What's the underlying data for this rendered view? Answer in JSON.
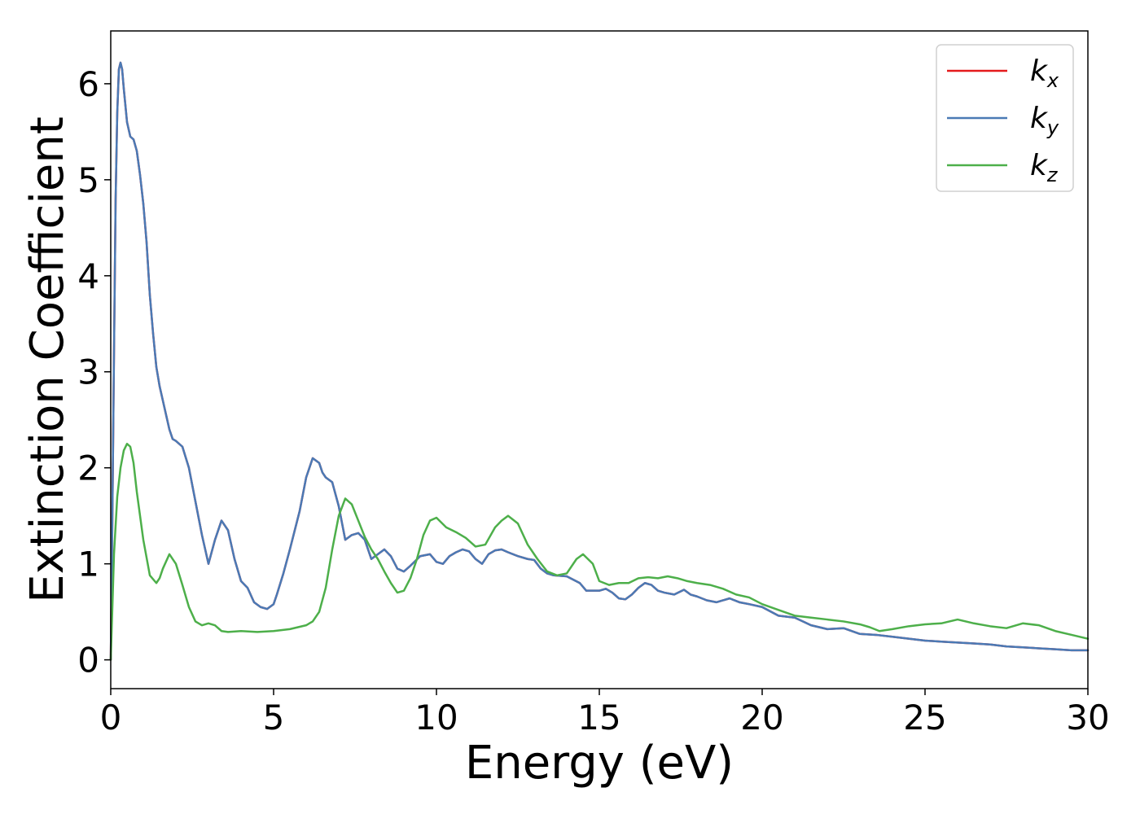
{
  "chart_data": {
    "type": "line",
    "xlabel": "Energy (eV)",
    "ylabel": "Extinction Coefficient",
    "xlim": [
      0,
      30
    ],
    "ylim": [
      -0.3,
      6.55
    ],
    "xticks": [
      "0",
      "5",
      "10",
      "15",
      "20",
      "25",
      "30"
    ],
    "yticks": [
      "0",
      "1",
      "2",
      "3",
      "4",
      "5",
      "6"
    ],
    "xtick_values": [
      0,
      5,
      10,
      15,
      20,
      25,
      30
    ],
    "ytick_values": [
      0,
      1,
      2,
      3,
      4,
      5,
      6
    ],
    "grid": false,
    "legend_position": "top-right",
    "colors": {
      "kx": "#e41a1c",
      "ky": "#4a7ab5",
      "kz": "#4daf4a"
    },
    "series": [
      {
        "name": "k_x",
        "label_main": "k",
        "label_sub": "x",
        "color": "#e41a1c",
        "x": [
          0.0,
          0.05,
          0.1,
          0.15,
          0.2,
          0.25,
          0.3,
          0.35,
          0.4,
          0.5,
          0.6,
          0.7,
          0.8,
          0.9,
          1.0,
          1.1,
          1.2,
          1.3,
          1.4,
          1.5,
          1.6,
          1.7,
          1.8,
          1.9,
          2.0,
          2.2,
          2.4,
          2.6,
          2.8,
          3.0,
          3.2,
          3.4,
          3.6,
          3.8,
          4.0,
          4.2,
          4.4,
          4.6,
          4.8,
          5.0,
          5.1,
          5.3,
          5.5,
          5.8,
          6.0,
          6.2,
          6.4,
          6.5,
          6.6,
          6.8,
          7.0,
          7.2,
          7.4,
          7.6,
          7.8,
          8.0,
          8.2,
          8.4,
          8.6,
          8.8,
          9.0,
          9.2,
          9.5,
          9.8,
          10.0,
          10.2,
          10.4,
          10.6,
          10.8,
          11.0,
          11.2,
          11.4,
          11.6,
          11.8,
          12.0,
          12.2,
          12.5,
          12.8,
          13.0,
          13.2,
          13.4,
          13.6,
          14.0,
          14.4,
          14.6,
          14.8,
          15.0,
          15.2,
          15.4,
          15.6,
          15.8,
          16.0,
          16.2,
          16.4,
          16.6,
          16.8,
          17.0,
          17.3,
          17.6,
          17.8,
          18.0,
          18.3,
          18.6,
          18.8,
          19.0,
          19.3,
          19.6,
          20.0,
          20.5,
          21.0,
          21.5,
          22.0,
          22.5,
          23.0,
          23.5,
          24.0,
          24.5,
          25.0,
          25.5,
          26.0,
          26.5,
          27.0,
          27.5,
          28.0,
          28.5,
          29.0,
          29.5,
          30.0
        ],
        "values": [
          0.0,
          1.5,
          3.2,
          4.8,
          5.7,
          6.15,
          6.22,
          6.15,
          5.95,
          5.6,
          5.45,
          5.42,
          5.3,
          5.05,
          4.75,
          4.35,
          3.8,
          3.4,
          3.05,
          2.85,
          2.7,
          2.55,
          2.4,
          2.3,
          2.28,
          2.22,
          2.0,
          1.65,
          1.3,
          1.0,
          1.25,
          1.45,
          1.35,
          1.05,
          0.82,
          0.75,
          0.6,
          0.55,
          0.53,
          0.58,
          0.68,
          0.9,
          1.15,
          1.55,
          1.9,
          2.1,
          2.05,
          1.95,
          1.9,
          1.85,
          1.6,
          1.25,
          1.3,
          1.32,
          1.25,
          1.05,
          1.1,
          1.15,
          1.08,
          0.95,
          0.92,
          0.98,
          1.08,
          1.1,
          1.02,
          1.0,
          1.08,
          1.12,
          1.15,
          1.13,
          1.05,
          1.0,
          1.1,
          1.14,
          1.15,
          1.12,
          1.08,
          1.05,
          1.04,
          0.95,
          0.9,
          0.88,
          0.87,
          0.8,
          0.72,
          0.72,
          0.72,
          0.74,
          0.7,
          0.64,
          0.63,
          0.68,
          0.75,
          0.8,
          0.78,
          0.72,
          0.7,
          0.68,
          0.73,
          0.68,
          0.66,
          0.62,
          0.6,
          0.62,
          0.64,
          0.6,
          0.58,
          0.55,
          0.46,
          0.44,
          0.36,
          0.32,
          0.33,
          0.27,
          0.26,
          0.24,
          0.22,
          0.2,
          0.19,
          0.18,
          0.17,
          0.16,
          0.14,
          0.13,
          0.12,
          0.11,
          0.1,
          0.1
        ]
      },
      {
        "name": "k_y",
        "label_main": "k",
        "label_sub": "y",
        "color": "#4a7ab5",
        "x": [
          0.0,
          0.05,
          0.1,
          0.15,
          0.2,
          0.25,
          0.3,
          0.35,
          0.4,
          0.5,
          0.6,
          0.7,
          0.8,
          0.9,
          1.0,
          1.1,
          1.2,
          1.3,
          1.4,
          1.5,
          1.6,
          1.7,
          1.8,
          1.9,
          2.0,
          2.2,
          2.4,
          2.6,
          2.8,
          3.0,
          3.2,
          3.4,
          3.6,
          3.8,
          4.0,
          4.2,
          4.4,
          4.6,
          4.8,
          5.0,
          5.1,
          5.3,
          5.5,
          5.8,
          6.0,
          6.2,
          6.4,
          6.5,
          6.6,
          6.8,
          7.0,
          7.2,
          7.4,
          7.6,
          7.8,
          8.0,
          8.2,
          8.4,
          8.6,
          8.8,
          9.0,
          9.2,
          9.5,
          9.8,
          10.0,
          10.2,
          10.4,
          10.6,
          10.8,
          11.0,
          11.2,
          11.4,
          11.6,
          11.8,
          12.0,
          12.2,
          12.5,
          12.8,
          13.0,
          13.2,
          13.4,
          13.6,
          14.0,
          14.4,
          14.6,
          14.8,
          15.0,
          15.2,
          15.4,
          15.6,
          15.8,
          16.0,
          16.2,
          16.4,
          16.6,
          16.8,
          17.0,
          17.3,
          17.6,
          17.8,
          18.0,
          18.3,
          18.6,
          18.8,
          19.0,
          19.3,
          19.6,
          20.0,
          20.5,
          21.0,
          21.5,
          22.0,
          22.5,
          23.0,
          23.5,
          24.0,
          24.5,
          25.0,
          25.5,
          26.0,
          26.5,
          27.0,
          27.5,
          28.0,
          28.5,
          29.0,
          29.5,
          30.0
        ],
        "values": [
          0.0,
          1.5,
          3.2,
          4.8,
          5.7,
          6.15,
          6.22,
          6.15,
          5.95,
          5.6,
          5.45,
          5.42,
          5.3,
          5.05,
          4.75,
          4.35,
          3.8,
          3.4,
          3.05,
          2.85,
          2.7,
          2.55,
          2.4,
          2.3,
          2.28,
          2.22,
          2.0,
          1.65,
          1.3,
          1.0,
          1.25,
          1.45,
          1.35,
          1.05,
          0.82,
          0.75,
          0.6,
          0.55,
          0.53,
          0.58,
          0.68,
          0.9,
          1.15,
          1.55,
          1.9,
          2.1,
          2.05,
          1.95,
          1.9,
          1.85,
          1.6,
          1.25,
          1.3,
          1.32,
          1.25,
          1.05,
          1.1,
          1.15,
          1.08,
          0.95,
          0.92,
          0.98,
          1.08,
          1.1,
          1.02,
          1.0,
          1.08,
          1.12,
          1.15,
          1.13,
          1.05,
          1.0,
          1.1,
          1.14,
          1.15,
          1.12,
          1.08,
          1.05,
          1.04,
          0.95,
          0.9,
          0.88,
          0.87,
          0.8,
          0.72,
          0.72,
          0.72,
          0.74,
          0.7,
          0.64,
          0.63,
          0.68,
          0.75,
          0.8,
          0.78,
          0.72,
          0.7,
          0.68,
          0.73,
          0.68,
          0.66,
          0.62,
          0.6,
          0.62,
          0.64,
          0.6,
          0.58,
          0.55,
          0.46,
          0.44,
          0.36,
          0.32,
          0.33,
          0.27,
          0.26,
          0.24,
          0.22,
          0.2,
          0.19,
          0.18,
          0.17,
          0.16,
          0.14,
          0.13,
          0.12,
          0.11,
          0.1,
          0.1
        ]
      },
      {
        "name": "k_z",
        "label_main": "k",
        "label_sub": "z",
        "color": "#4daf4a",
        "x": [
          0.0,
          0.1,
          0.2,
          0.3,
          0.4,
          0.5,
          0.6,
          0.7,
          0.8,
          1.0,
          1.2,
          1.4,
          1.5,
          1.6,
          1.8,
          2.0,
          2.2,
          2.4,
          2.6,
          2.8,
          3.0,
          3.2,
          3.4,
          3.6,
          4.0,
          4.5,
          5.0,
          5.5,
          6.0,
          6.2,
          6.4,
          6.6,
          6.8,
          7.0,
          7.2,
          7.4,
          7.6,
          7.8,
          8.0,
          8.2,
          8.4,
          8.6,
          8.8,
          9.0,
          9.2,
          9.4,
          9.6,
          9.8,
          10.0,
          10.3,
          10.6,
          10.9,
          11.2,
          11.5,
          11.8,
          12.0,
          12.2,
          12.5,
          12.8,
          13.1,
          13.4,
          13.7,
          14.0,
          14.3,
          14.5,
          14.8,
          15.0,
          15.3,
          15.6,
          15.9,
          16.2,
          16.5,
          16.8,
          17.1,
          17.4,
          17.7,
          18.0,
          18.4,
          18.8,
          19.2,
          19.6,
          20.0,
          20.5,
          21.0,
          21.5,
          22.0,
          22.5,
          23.0,
          23.3,
          23.6,
          24.0,
          24.5,
          25.0,
          25.5,
          26.0,
          26.5,
          27.0,
          27.5,
          28.0,
          28.5,
          29.0,
          29.5,
          30.0
        ],
        "values": [
          0.0,
          1.1,
          1.7,
          2.0,
          2.18,
          2.25,
          2.22,
          2.05,
          1.75,
          1.25,
          0.88,
          0.8,
          0.85,
          0.95,
          1.1,
          1.0,
          0.78,
          0.55,
          0.4,
          0.36,
          0.38,
          0.36,
          0.3,
          0.29,
          0.3,
          0.29,
          0.3,
          0.32,
          0.36,
          0.4,
          0.5,
          0.75,
          1.15,
          1.5,
          1.68,
          1.62,
          1.45,
          1.28,
          1.15,
          1.05,
          0.92,
          0.8,
          0.7,
          0.72,
          0.85,
          1.05,
          1.3,
          1.45,
          1.48,
          1.38,
          1.33,
          1.27,
          1.18,
          1.2,
          1.38,
          1.45,
          1.5,
          1.42,
          1.2,
          1.05,
          0.92,
          0.88,
          0.9,
          1.05,
          1.1,
          1.0,
          0.82,
          0.78,
          0.8,
          0.8,
          0.85,
          0.86,
          0.85,
          0.87,
          0.85,
          0.82,
          0.8,
          0.78,
          0.74,
          0.68,
          0.65,
          0.58,
          0.52,
          0.46,
          0.44,
          0.42,
          0.4,
          0.37,
          0.34,
          0.3,
          0.32,
          0.35,
          0.37,
          0.38,
          0.42,
          0.38,
          0.35,
          0.33,
          0.38,
          0.36,
          0.3,
          0.26,
          0.22
        ]
      }
    ]
  }
}
